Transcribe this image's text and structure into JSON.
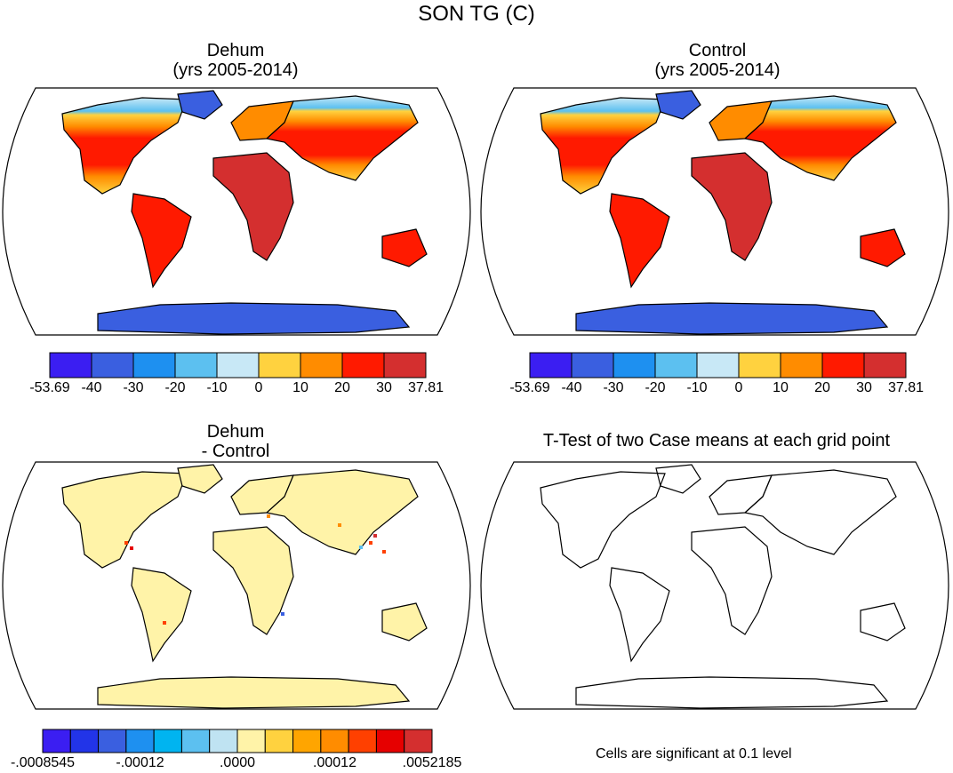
{
  "figure": {
    "title": "SON TG (C)"
  },
  "panels": [
    {
      "id": "dehum",
      "title_line1": "Dehum",
      "title_line2": "(yrs 2005-2014)",
      "colorbar": {
        "colors": [
          "#3b1ef2",
          "#3a5fe0",
          "#1e90f0",
          "#5cc0f0",
          "#c8e8f6",
          "#ffd23f",
          "#ff8c00",
          "#ff1a00",
          "#d42f2f"
        ],
        "labels": [
          "-53.69",
          "-40",
          "-30",
          "-20",
          "-10",
          "0",
          "10",
          "20",
          "30",
          "37.81"
        ]
      }
    },
    {
      "id": "control",
      "title_line1": "Control",
      "title_line2": "(yrs 2005-2014)",
      "colorbar": {
        "colors": [
          "#3b1ef2",
          "#3a5fe0",
          "#1e90f0",
          "#5cc0f0",
          "#c8e8f6",
          "#ffd23f",
          "#ff8c00",
          "#ff1a00",
          "#d42f2f"
        ],
        "labels": [
          "-53.69",
          "-40",
          "-30",
          "-20",
          "-10",
          "0",
          "10",
          "20",
          "30",
          "37.81"
        ]
      }
    },
    {
      "id": "diff",
      "title_line1": "Dehum",
      "title_line2": "- Control",
      "colorbar": {
        "colors": [
          "#3b1ef2",
          "#2234e8",
          "#3a5fe0",
          "#1e90f0",
          "#00b4f0",
          "#5cc0f0",
          "#bfe3f2",
          "#fff3a8",
          "#ffd23f",
          "#ffa500",
          "#ff8c00",
          "#ff4000",
          "#e60000",
          "#d42f2f"
        ],
        "labels": [
          "-.0008545",
          "-.00012",
          ".0000",
          ".00012",
          ".0052185"
        ]
      }
    },
    {
      "id": "ttest",
      "title_line1": "T-Test of two Case means at each grid point",
      "note": "Cells are significant at 0.1 level"
    }
  ]
}
